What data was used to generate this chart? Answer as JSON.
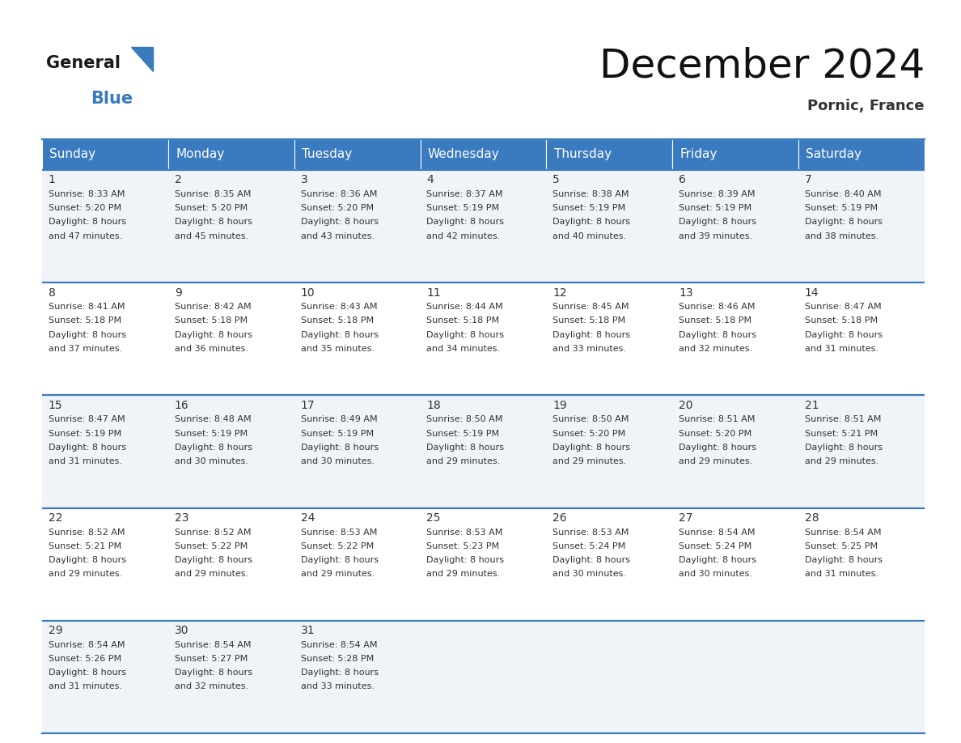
{
  "title": "December 2024",
  "subtitle": "Pornic, France",
  "header_color": "#3a7abf",
  "header_text_color": "#ffffff",
  "day_headers": [
    "Sunday",
    "Monday",
    "Tuesday",
    "Wednesday",
    "Thursday",
    "Friday",
    "Saturday"
  ],
  "weeks": [
    [
      {
        "day": 1,
        "sunrise": "8:33 AM",
        "sunset": "5:20 PM",
        "daylight_line1": "Daylight: 8 hours",
        "daylight_line2": "and 47 minutes."
      },
      {
        "day": 2,
        "sunrise": "8:35 AM",
        "sunset": "5:20 PM",
        "daylight_line1": "Daylight: 8 hours",
        "daylight_line2": "and 45 minutes."
      },
      {
        "day": 3,
        "sunrise": "8:36 AM",
        "sunset": "5:20 PM",
        "daylight_line1": "Daylight: 8 hours",
        "daylight_line2": "and 43 minutes."
      },
      {
        "day": 4,
        "sunrise": "8:37 AM",
        "sunset": "5:19 PM",
        "daylight_line1": "Daylight: 8 hours",
        "daylight_line2": "and 42 minutes."
      },
      {
        "day": 5,
        "sunrise": "8:38 AM",
        "sunset": "5:19 PM",
        "daylight_line1": "Daylight: 8 hours",
        "daylight_line2": "and 40 minutes."
      },
      {
        "day": 6,
        "sunrise": "8:39 AM",
        "sunset": "5:19 PM",
        "daylight_line1": "Daylight: 8 hours",
        "daylight_line2": "and 39 minutes."
      },
      {
        "day": 7,
        "sunrise": "8:40 AM",
        "sunset": "5:19 PM",
        "daylight_line1": "Daylight: 8 hours",
        "daylight_line2": "and 38 minutes."
      }
    ],
    [
      {
        "day": 8,
        "sunrise": "8:41 AM",
        "sunset": "5:18 PM",
        "daylight_line1": "Daylight: 8 hours",
        "daylight_line2": "and 37 minutes."
      },
      {
        "day": 9,
        "sunrise": "8:42 AM",
        "sunset": "5:18 PM",
        "daylight_line1": "Daylight: 8 hours",
        "daylight_line2": "and 36 minutes."
      },
      {
        "day": 10,
        "sunrise": "8:43 AM",
        "sunset": "5:18 PM",
        "daylight_line1": "Daylight: 8 hours",
        "daylight_line2": "and 35 minutes."
      },
      {
        "day": 11,
        "sunrise": "8:44 AM",
        "sunset": "5:18 PM",
        "daylight_line1": "Daylight: 8 hours",
        "daylight_line2": "and 34 minutes."
      },
      {
        "day": 12,
        "sunrise": "8:45 AM",
        "sunset": "5:18 PM",
        "daylight_line1": "Daylight: 8 hours",
        "daylight_line2": "and 33 minutes."
      },
      {
        "day": 13,
        "sunrise": "8:46 AM",
        "sunset": "5:18 PM",
        "daylight_line1": "Daylight: 8 hours",
        "daylight_line2": "and 32 minutes."
      },
      {
        "day": 14,
        "sunrise": "8:47 AM",
        "sunset": "5:18 PM",
        "daylight_line1": "Daylight: 8 hours",
        "daylight_line2": "and 31 minutes."
      }
    ],
    [
      {
        "day": 15,
        "sunrise": "8:47 AM",
        "sunset": "5:19 PM",
        "daylight_line1": "Daylight: 8 hours",
        "daylight_line2": "and 31 minutes."
      },
      {
        "day": 16,
        "sunrise": "8:48 AM",
        "sunset": "5:19 PM",
        "daylight_line1": "Daylight: 8 hours",
        "daylight_line2": "and 30 minutes."
      },
      {
        "day": 17,
        "sunrise": "8:49 AM",
        "sunset": "5:19 PM",
        "daylight_line1": "Daylight: 8 hours",
        "daylight_line2": "and 30 minutes."
      },
      {
        "day": 18,
        "sunrise": "8:50 AM",
        "sunset": "5:19 PM",
        "daylight_line1": "Daylight: 8 hours",
        "daylight_line2": "and 29 minutes."
      },
      {
        "day": 19,
        "sunrise": "8:50 AM",
        "sunset": "5:20 PM",
        "daylight_line1": "Daylight: 8 hours",
        "daylight_line2": "and 29 minutes."
      },
      {
        "day": 20,
        "sunrise": "8:51 AM",
        "sunset": "5:20 PM",
        "daylight_line1": "Daylight: 8 hours",
        "daylight_line2": "and 29 minutes."
      },
      {
        "day": 21,
        "sunrise": "8:51 AM",
        "sunset": "5:21 PM",
        "daylight_line1": "Daylight: 8 hours",
        "daylight_line2": "and 29 minutes."
      }
    ],
    [
      {
        "day": 22,
        "sunrise": "8:52 AM",
        "sunset": "5:21 PM",
        "daylight_line1": "Daylight: 8 hours",
        "daylight_line2": "and 29 minutes."
      },
      {
        "day": 23,
        "sunrise": "8:52 AM",
        "sunset": "5:22 PM",
        "daylight_line1": "Daylight: 8 hours",
        "daylight_line2": "and 29 minutes."
      },
      {
        "day": 24,
        "sunrise": "8:53 AM",
        "sunset": "5:22 PM",
        "daylight_line1": "Daylight: 8 hours",
        "daylight_line2": "and 29 minutes."
      },
      {
        "day": 25,
        "sunrise": "8:53 AM",
        "sunset": "5:23 PM",
        "daylight_line1": "Daylight: 8 hours",
        "daylight_line2": "and 29 minutes."
      },
      {
        "day": 26,
        "sunrise": "8:53 AM",
        "sunset": "5:24 PM",
        "daylight_line1": "Daylight: 8 hours",
        "daylight_line2": "and 30 minutes."
      },
      {
        "day": 27,
        "sunrise": "8:54 AM",
        "sunset": "5:24 PM",
        "daylight_line1": "Daylight: 8 hours",
        "daylight_line2": "and 30 minutes."
      },
      {
        "day": 28,
        "sunrise": "8:54 AM",
        "sunset": "5:25 PM",
        "daylight_line1": "Daylight: 8 hours",
        "daylight_line2": "and 31 minutes."
      }
    ],
    [
      {
        "day": 29,
        "sunrise": "8:54 AM",
        "sunset": "5:26 PM",
        "daylight_line1": "Daylight: 8 hours",
        "daylight_line2": "and 31 minutes."
      },
      {
        "day": 30,
        "sunrise": "8:54 AM",
        "sunset": "5:27 PM",
        "daylight_line1": "Daylight: 8 hours",
        "daylight_line2": "and 32 minutes."
      },
      {
        "day": 31,
        "sunrise": "8:54 AM",
        "sunset": "5:28 PM",
        "daylight_line1": "Daylight: 8 hours",
        "daylight_line2": "and 33 minutes."
      },
      null,
      null,
      null,
      null
    ]
  ],
  "line_color": "#3a7abf",
  "separator_color": "#3a7abf",
  "cell_bg_even": "#f0f4f8",
  "cell_bg_odd": "#ffffff",
  "text_color": "#333333",
  "title_fontsize": 36,
  "subtitle_fontsize": 13,
  "header_fontsize": 11,
  "day_num_fontsize": 10,
  "cell_text_fontsize": 8
}
